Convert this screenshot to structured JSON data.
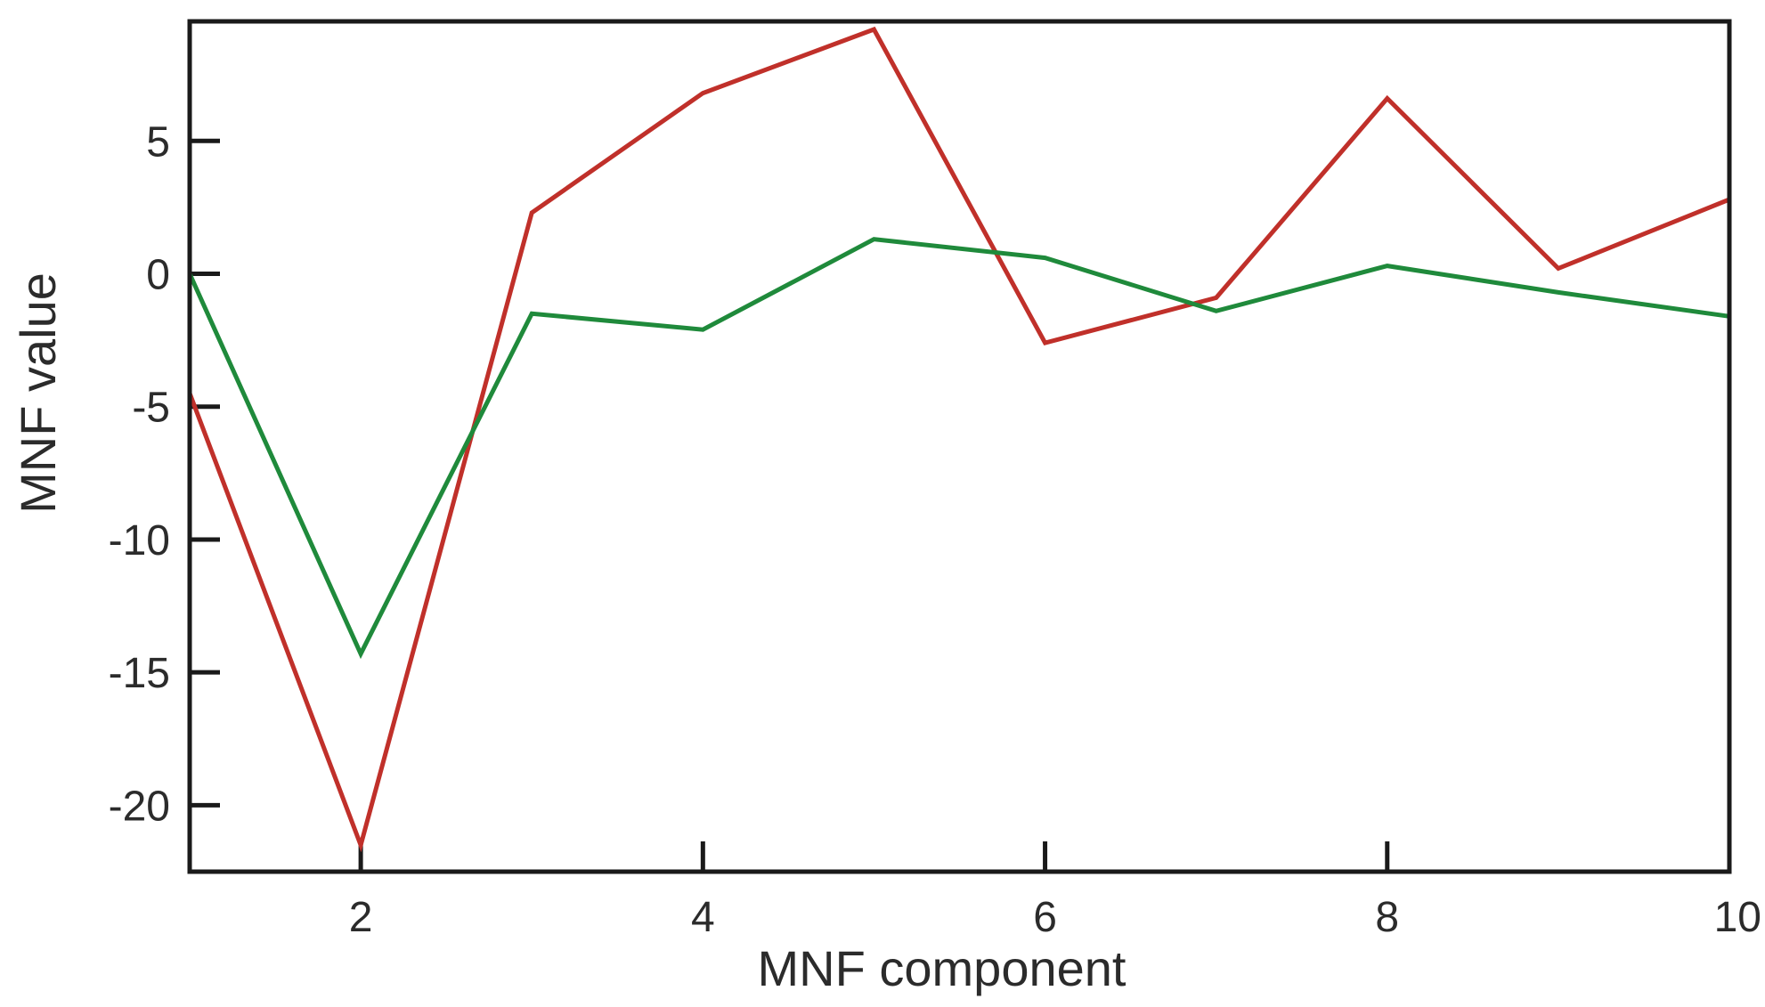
{
  "chart_data": {
    "type": "line",
    "title": "",
    "xlabel": "MNF component",
    "ylabel": "MNF value",
    "xlim": [
      1,
      10
    ],
    "ylim": [
      -22.5,
      9.5
    ],
    "xticks": [
      2,
      4,
      6,
      8,
      10
    ],
    "yticks": [
      5,
      0,
      -5,
      -10,
      -15,
      -20
    ],
    "grid": false,
    "x": [
      1,
      2,
      3,
      4,
      5,
      6,
      7,
      8,
      9,
      10
    ],
    "series": [
      {
        "color": "#c0302a",
        "values": [
          -4.5,
          -21.5,
          2.3,
          6.8,
          9.2,
          -2.6,
          -0.9,
          6.6,
          0.2,
          2.8
        ]
      },
      {
        "color": "#1f8a3b",
        "values": [
          0.0,
          -14.3,
          -1.5,
          -2.1,
          1.3,
          0.6,
          -1.4,
          0.3,
          -0.7,
          -1.6
        ]
      }
    ]
  }
}
